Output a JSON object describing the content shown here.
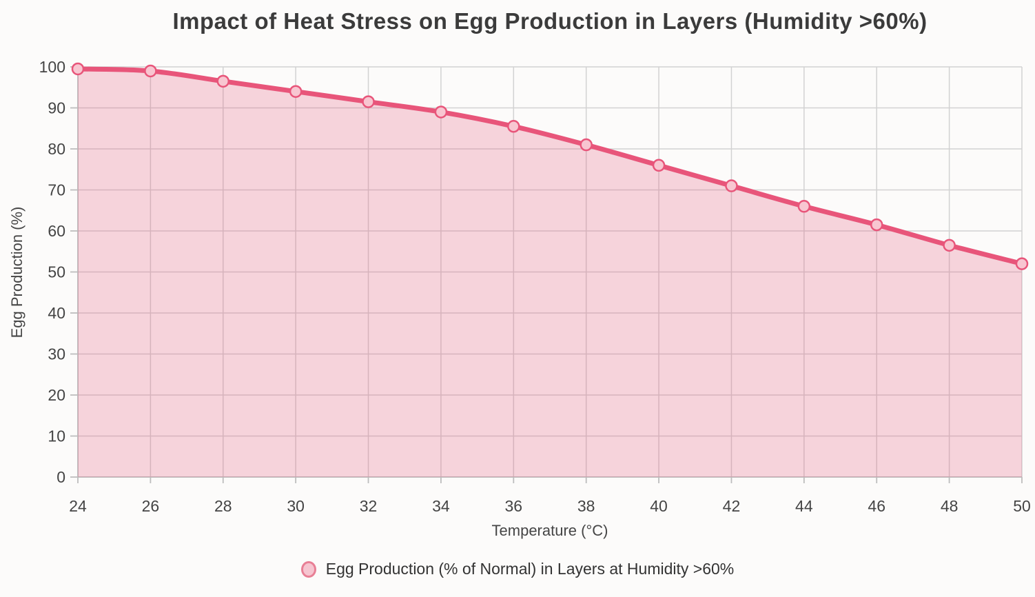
{
  "chart_data": {
    "type": "area",
    "title": "Impact of Heat Stress on Egg Production in Layers (Humidity >60%)",
    "xlabel": "Temperature (°C)",
    "ylabel": "Egg Production (%)",
    "series_name": "Egg Production (% of Normal) in Layers at Humidity >60%",
    "x": [
      24,
      26,
      28,
      30,
      32,
      34,
      36,
      38,
      40,
      42,
      44,
      46,
      48,
      50
    ],
    "values": [
      99.5,
      99,
      96.5,
      94,
      91.5,
      89,
      85.5,
      81,
      76,
      71,
      66,
      61.5,
      56.5,
      52
    ],
    "xlim": [
      24,
      50
    ],
    "ylim": [
      0,
      100
    ],
    "xticks": [
      24,
      26,
      28,
      30,
      32,
      34,
      36,
      38,
      40,
      42,
      44,
      46,
      48,
      50
    ],
    "yticks": [
      0,
      10,
      20,
      30,
      40,
      50,
      60,
      70,
      80,
      90,
      100
    ],
    "grid": true,
    "legend_position": "bottom",
    "colors": {
      "line": "#e8557a",
      "fill": "rgba(232,85,122,0.24)",
      "marker_fill": "#f8c6d1",
      "marker_stroke": "#e8557a",
      "grid": "#d2d2d2",
      "axis_line": "#bdbdbd",
      "tick_text": "#444444",
      "title_text": "#3b3b3b"
    }
  }
}
